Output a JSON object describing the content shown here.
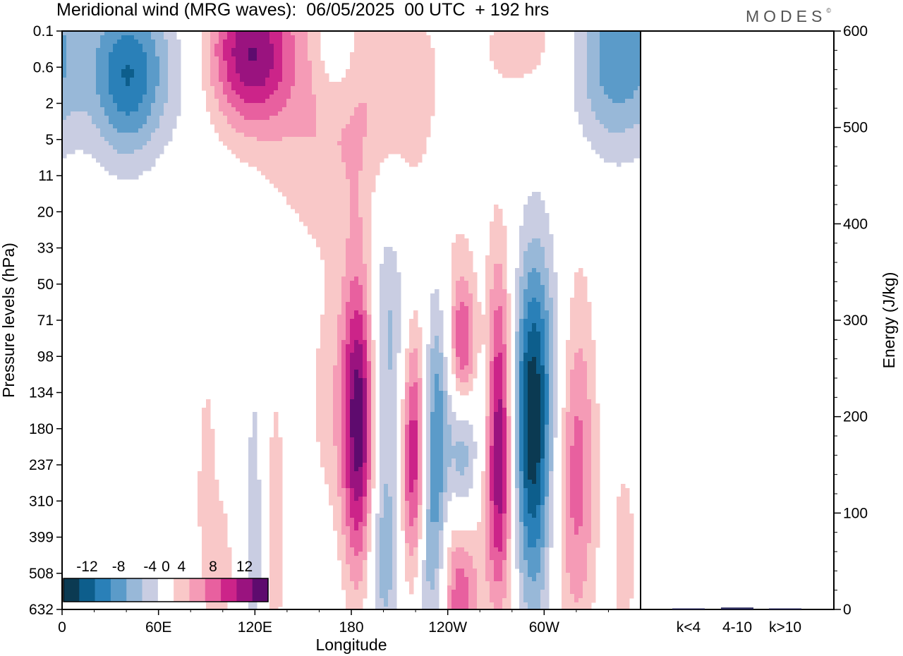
{
  "chart_data": [
    {
      "type": "heatmap",
      "title": "Meridional wind (MRG waves):  06/05/2025  00 UTC  + 192 hrs",
      "xlabel": "Longitude",
      "ylabel": "Pressure levels (hPa)",
      "x_ticks": [
        "0",
        "60E",
        "120E",
        "180",
        "120W",
        "60W"
      ],
      "x_tick_degrees": [
        0,
        60,
        120,
        180,
        240,
        300
      ],
      "xlim": [
        0,
        360
      ],
      "y_ticks": [
        "0.1",
        "0.6",
        "2",
        "5",
        "11",
        "20",
        "33",
        "50",
        "71",
        "98",
        "134",
        "180",
        "237",
        "310",
        "399",
        "508",
        "632"
      ],
      "colorbar": {
        "labels": [
          "-12",
          "-8",
          "-4",
          "0",
          "4",
          "8",
          "12"
        ],
        "levels": [
          -14,
          -12,
          -10,
          -8,
          -6,
          -4,
          -2,
          2,
          4,
          6,
          8,
          10,
          12,
          14
        ],
        "colors": [
          "#0b3a52",
          "#0d5e8c",
          "#2a80b8",
          "#5b9bc9",
          "#98b8d8",
          "#c9cde2",
          "#ffffff",
          "#f9c8c8",
          "#f59bb6",
          "#e8609f",
          "#cc2489",
          "#9a137f",
          "#5e0b6e"
        ]
      },
      "features": [
        {
          "lon": 185,
          "level": 180,
          "value": 11,
          "w": 7,
          "h": 3.2
        },
        {
          "lon": 184,
          "level": 150,
          "value": 4,
          "w": 22,
          "h": 2.5
        },
        {
          "lon": 202,
          "level": 98,
          "value": -7,
          "w": 10,
          "h": 3
        },
        {
          "lon": 200,
          "level": 450,
          "value": -5,
          "w": 8,
          "h": 2.2
        },
        {
          "lon": 219,
          "level": 237,
          "value": 11,
          "w": 6,
          "h": 2.6
        },
        {
          "lon": 225,
          "level": 460,
          "value": -4,
          "w": 6,
          "h": 2.2
        },
        {
          "lon": 233,
          "level": 200,
          "value": -8,
          "w": 6,
          "h": 3.2
        },
        {
          "lon": 249,
          "level": 237,
          "value": -8,
          "w": 6,
          "h": 2.3
        },
        {
          "lon": 248,
          "level": 520,
          "value": 10,
          "w": 8,
          "h": 2.2
        },
        {
          "lon": 250,
          "level": 100,
          "value": 10,
          "w": 6,
          "h": 1.4
        },
        {
          "lon": 246,
          "level": 71,
          "value": 3,
          "w": 9,
          "h": 2
        },
        {
          "lon": 272,
          "level": 190,
          "value": 14,
          "w": 6,
          "h": 3.2
        },
        {
          "lon": 293,
          "level": 190,
          "value": -12,
          "w": 8,
          "h": 3.4
        },
        {
          "lon": 320,
          "level": 200,
          "value": 8,
          "w": 9,
          "h": 3.8
        },
        {
          "lon": 310,
          "level": 90,
          "value": -3,
          "w": 14,
          "h": 2.6
        },
        {
          "lon": 265,
          "level": 140,
          "value": -3,
          "w": 20,
          "h": 2
        },
        {
          "lon": 40,
          "level": 0.8,
          "value": -9,
          "w": 15,
          "h": 1.6
        },
        {
          "lon": 75,
          "level": 0.5,
          "value": -4,
          "w": 20,
          "h": 1.6
        },
        {
          "lon": 120,
          "level": 0.3,
          "value": 9,
          "w": 16,
          "h": 1.4
        },
        {
          "lon": 95,
          "level": 0.3,
          "value": 5,
          "w": 18,
          "h": 1.6
        },
        {
          "lon": 155,
          "level": 1.0,
          "value": 3,
          "w": 28,
          "h": 3
        },
        {
          "lon": 200,
          "level": 1.8,
          "value": 3,
          "w": 35,
          "h": 3
        },
        {
          "lon": 345,
          "level": 0.35,
          "value": -8,
          "w": 22,
          "h": 1.8
        },
        {
          "lon": 170,
          "level": 0.2,
          "value": -4,
          "w": 10,
          "h": 1.2
        },
        {
          "lon": 295,
          "level": 0.2,
          "value": 3,
          "w": 25,
          "h": 1.2
        },
        {
          "lon": 120,
          "level": 380,
          "value": -3,
          "w": 5,
          "h": 4
        },
        {
          "lon": 90,
          "level": 300,
          "value": 3,
          "w": 5,
          "h": 3
        },
        {
          "lon": 132,
          "level": 400,
          "value": 3,
          "w": 5,
          "h": 3.5
        },
        {
          "lon": 100,
          "level": 500,
          "value": 3,
          "w": 5,
          "h": 1.6
        },
        {
          "lon": 350,
          "level": 450,
          "value": 3,
          "w": 6,
          "h": 2.2
        }
      ]
    },
    {
      "type": "bar",
      "ylabel": "Energy (J/kg)",
      "categories": [
        "k<4",
        "4-10",
        "k>10"
      ],
      "values": [
        0.5,
        2,
        0.5
      ],
      "ylim": [
        0,
        600
      ],
      "y_ticks": [
        "0",
        "100",
        "200",
        "300",
        "400",
        "500",
        "600"
      ]
    }
  ],
  "logo": "MODES"
}
